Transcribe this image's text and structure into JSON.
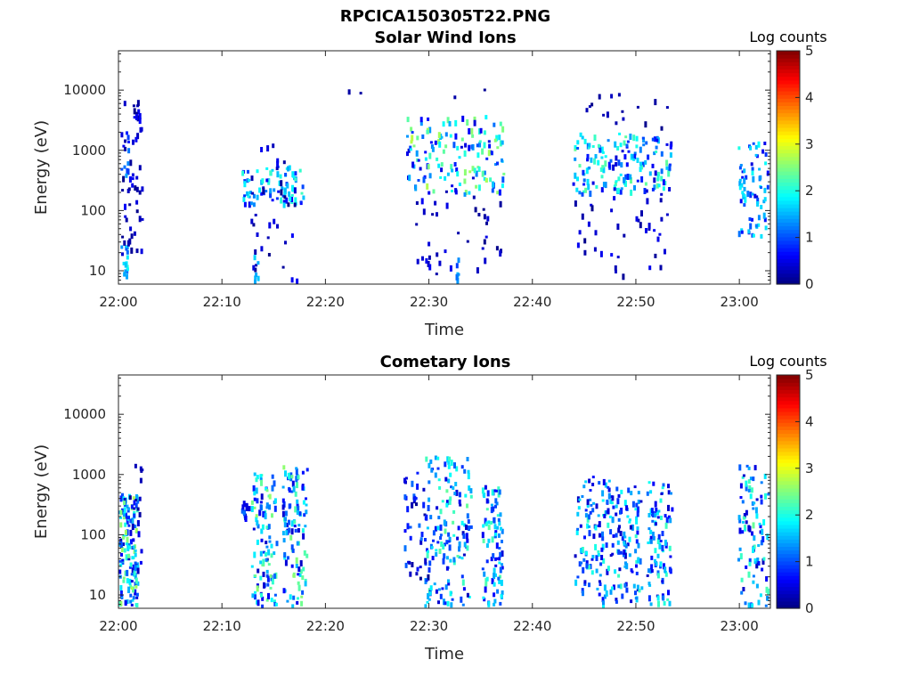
{
  "figure": {
    "title": "RPCICA150305T22.PNG"
  },
  "colors": {
    "axis": "#262626",
    "background": "#ffffff"
  },
  "colormap": "jet",
  "chart_data": [
    {
      "type": "heatmap",
      "title": "Solar Wind Ions",
      "xlabel": "Time",
      "ylabel": "Energy (eV)",
      "x_ticks": [
        "22:00",
        "22:10",
        "22:20",
        "22:30",
        "22:40",
        "22:50",
        "23:00"
      ],
      "x_range_minutes": [
        0,
        63
      ],
      "y_scale": "log",
      "y_ticks": [
        "10",
        "100",
        "1000",
        "10000"
      ],
      "y_range": [
        6,
        45000
      ],
      "colorbar": {
        "label": "Log counts",
        "range": [
          0,
          5
        ],
        "ticks": [
          "0",
          "1",
          "2",
          "3",
          "4",
          "5"
        ]
      },
      "clusters": [
        {
          "t": [
            0.2,
            0.8
          ],
          "e": [
            6,
            30
          ],
          "lc": [
            1.0,
            2.2
          ],
          "n": 20
        },
        {
          "t": [
            0.1,
            2.2
          ],
          "e": [
            20,
            8000
          ],
          "lc": [
            0.05,
            0.6
          ],
          "n": 55
        },
        {
          "t": [
            0.2,
            0.9
          ],
          "e": [
            400,
            2500
          ],
          "lc": [
            0.6,
            1.6
          ],
          "n": 10
        },
        {
          "t": [
            11.8,
            17.8
          ],
          "e": [
            130,
            600
          ],
          "lc": [
            0.5,
            2.2
          ],
          "n": 80
        },
        {
          "t": [
            12.5,
            17.5
          ],
          "e": [
            7,
            1400
          ],
          "lc": [
            0.05,
            0.6
          ],
          "n": 38
        },
        {
          "t": [
            13.0,
            13.4
          ],
          "e": [
            7,
            20
          ],
          "lc": [
            1.4,
            1.8
          ],
          "n": 6
        },
        {
          "t": [
            27.8,
            37.2
          ],
          "e": [
            200,
            4000
          ],
          "lc": [
            0.4,
            2.8
          ],
          "n": 150
        },
        {
          "t": [
            28.0,
            37.0
          ],
          "e": [
            7,
            250
          ],
          "lc": [
            0.05,
            0.6
          ],
          "n": 40
        },
        {
          "t": [
            32.5,
            32.9
          ],
          "e": [
            6,
            20
          ],
          "lc": [
            0.8,
            1.6
          ],
          "n": 6
        },
        {
          "t": [
            43.8,
            53.4
          ],
          "e": [
            200,
            2000
          ],
          "lc": [
            0.4,
            2.4
          ],
          "n": 160
        },
        {
          "t": [
            44.0,
            53.0
          ],
          "e": [
            6,
            200
          ],
          "lc": [
            0.05,
            0.6
          ],
          "n": 40
        },
        {
          "t": [
            44.0,
            53.0
          ],
          "e": [
            2500,
            10000
          ],
          "lc": [
            0.05,
            0.4
          ],
          "n": 16
        },
        {
          "t": [
            59.8,
            63.0
          ],
          "e": [
            40,
            1500
          ],
          "lc": [
            0.4,
            2.0
          ],
          "n": 70
        },
        {
          "t": [
            59.8,
            60.4
          ],
          "e": [
            180,
            350
          ],
          "lc": [
            1.4,
            2.0
          ],
          "n": 8
        },
        {
          "t": [
            20.0,
            40.0
          ],
          "e": [
            8000,
            20000
          ],
          "lc": [
            0.05,
            0.2
          ],
          "n": 4
        }
      ]
    },
    {
      "type": "heatmap",
      "title": "Cometary Ions",
      "xlabel": "Time",
      "ylabel": "Energy (eV)",
      "x_ticks": [
        "22:00",
        "22:10",
        "22:20",
        "22:30",
        "22:40",
        "22:50",
        "23:00"
      ],
      "x_range_minutes": [
        0,
        63
      ],
      "y_scale": "log",
      "y_ticks": [
        "10",
        "100",
        "1000",
        "10000"
      ],
      "y_range": [
        6,
        45000
      ],
      "colorbar": {
        "label": "Log counts",
        "range": [
          0,
          5
        ],
        "ticks": [
          "0",
          "1",
          "2",
          "3",
          "4",
          "5"
        ]
      },
      "clusters": [
        {
          "t": [
            0.0,
            1.8
          ],
          "e": [
            6,
            500
          ],
          "lc": [
            0.3,
            2.8
          ],
          "n": 150
        },
        {
          "t": [
            1.0,
            2.2
          ],
          "e": [
            30,
            1600
          ],
          "lc": [
            0.05,
            0.6
          ],
          "n": 15
        },
        {
          "t": [
            11.8,
            12.6
          ],
          "e": [
            200,
            400
          ],
          "lc": [
            0.3,
            1.2
          ],
          "n": 12
        },
        {
          "t": [
            12.8,
            15.2
          ],
          "e": [
            6,
            1200
          ],
          "lc": [
            0.3,
            2.6
          ],
          "n": 110
        },
        {
          "t": [
            15.8,
            18.2
          ],
          "e": [
            6,
            1500
          ],
          "lc": [
            0.3,
            2.6
          ],
          "n": 110
        },
        {
          "t": [
            27.5,
            30.0
          ],
          "e": [
            20,
            1200
          ],
          "lc": [
            0.05,
            1.2
          ],
          "n": 45
        },
        {
          "t": [
            29.5,
            34.0
          ],
          "e": [
            6,
            2200
          ],
          "lc": [
            0.3,
            2.4
          ],
          "n": 150
        },
        {
          "t": [
            35.0,
            37.0
          ],
          "e": [
            6,
            700
          ],
          "lc": [
            0.3,
            2.4
          ],
          "n": 95
        },
        {
          "t": [
            44.0,
            48.0
          ],
          "e": [
            6,
            1000
          ],
          "lc": [
            0.3,
            2.2
          ],
          "n": 130
        },
        {
          "t": [
            48.0,
            50.5
          ],
          "e": [
            6,
            700
          ],
          "lc": [
            0.3,
            2.2
          ],
          "n": 90
        },
        {
          "t": [
            51.0,
            53.4
          ],
          "e": [
            6,
            800
          ],
          "lc": [
            0.3,
            2.2
          ],
          "n": 90
        },
        {
          "t": [
            59.8,
            63.0
          ],
          "e": [
            6,
            1500
          ],
          "lc": [
            0.3,
            2.4
          ],
          "n": 110
        }
      ]
    }
  ]
}
